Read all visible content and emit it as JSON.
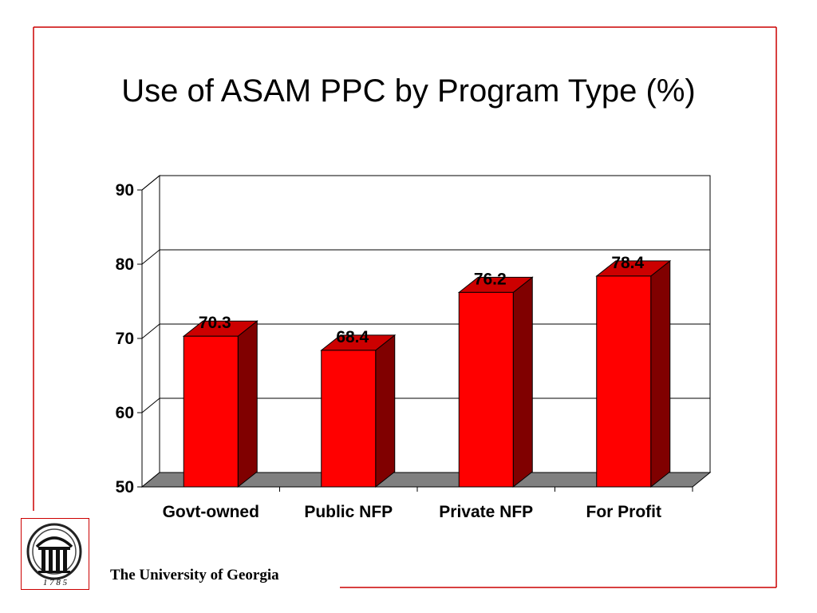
{
  "slide": {
    "title": "Use of ASAM PPC by Program Type (%)",
    "footer": "The University of Georgia",
    "logo_year": "1 7 8 5",
    "colors": {
      "frame": "#cc0000",
      "bar_front": "#ff0000",
      "bar_side": "#800000",
      "bar_top": "#cc0000",
      "floor": "#808080"
    }
  },
  "chart_data": {
    "type": "bar",
    "title": "Use of ASAM PPC by Program Type (%)",
    "categories": [
      "Govt-owned",
      "Public NFP",
      "Private NFP",
      "For Profit"
    ],
    "values": [
      70.3,
      68.4,
      76.2,
      78.4
    ],
    "data_labels": [
      "70.3",
      "68.4",
      "76.2",
      "78.4"
    ],
    "ylim": [
      50,
      90
    ],
    "yticks": [
      50,
      60,
      70,
      80,
      90
    ],
    "ytick_labels": [
      "50",
      "60",
      "70",
      "80",
      "90"
    ],
    "grid": true,
    "xlabel": "",
    "ylabel": ""
  }
}
